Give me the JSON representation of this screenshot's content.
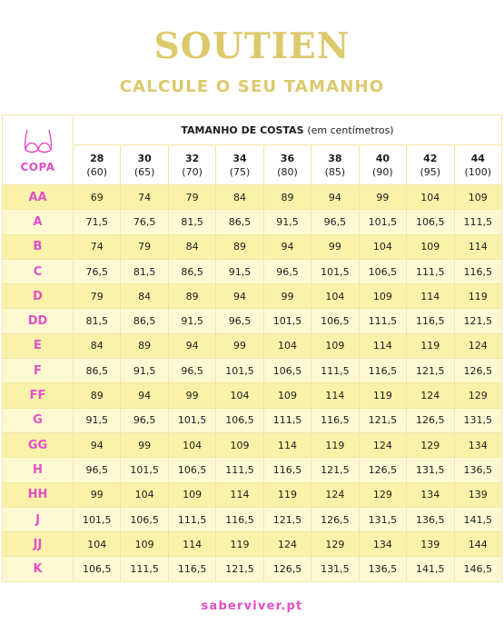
{
  "header": {
    "title": "SOUTIEN",
    "subtitle": "CALCULE O SEU TAMANHO"
  },
  "table": {
    "corner_label": "COPA",
    "heading": "TAMANHO DE COSTAS",
    "heading_unit": "(em centímetros)",
    "columns": [
      {
        "size": "28",
        "cm": "(60)"
      },
      {
        "size": "30",
        "cm": "(65)"
      },
      {
        "size": "32",
        "cm": "(70)"
      },
      {
        "size": "34",
        "cm": "(75)"
      },
      {
        "size": "36",
        "cm": "(80)"
      },
      {
        "size": "38",
        "cm": "(85)"
      },
      {
        "size": "40",
        "cm": "(90)"
      },
      {
        "size": "42",
        "cm": "(95)"
      },
      {
        "size": "44",
        "cm": "(100)"
      }
    ],
    "rows": [
      {
        "cup": "AA",
        "values": [
          "69",
          "74",
          "79",
          "84",
          "89",
          "94",
          "99",
          "104",
          "109"
        ]
      },
      {
        "cup": "A",
        "values": [
          "71,5",
          "76,5",
          "81,5",
          "86,5",
          "91,5",
          "96,5",
          "101,5",
          "106,5",
          "111,5"
        ]
      },
      {
        "cup": "B",
        "values": [
          "74",
          "79",
          "84",
          "89",
          "94",
          "99",
          "104",
          "109",
          "114"
        ]
      },
      {
        "cup": "C",
        "values": [
          "76,5",
          "81,5",
          "86,5",
          "91,5",
          "96,5",
          "101,5",
          "106,5",
          "111,5",
          "116,5"
        ]
      },
      {
        "cup": "D",
        "values": [
          "79",
          "84",
          "89",
          "94",
          "99",
          "104",
          "109",
          "114",
          "119"
        ]
      },
      {
        "cup": "DD",
        "values": [
          "81,5",
          "86,5",
          "91,5",
          "96,5",
          "101,5",
          "106,5",
          "111,5",
          "116,5",
          "121,5"
        ]
      },
      {
        "cup": "E",
        "values": [
          "84",
          "89",
          "94",
          "99",
          "104",
          "109",
          "114",
          "119",
          "124"
        ]
      },
      {
        "cup": "F",
        "values": [
          "86,5",
          "91,5",
          "96,5",
          "101,5",
          "106,5",
          "111,5",
          "116,5",
          "121,5",
          "126,5"
        ]
      },
      {
        "cup": "FF",
        "values": [
          "89",
          "94",
          "99",
          "104",
          "109",
          "114",
          "119",
          "124",
          "129"
        ]
      },
      {
        "cup": "G",
        "values": [
          "91,5",
          "96,5",
          "101,5",
          "106,5",
          "111,5",
          "116,5",
          "121,5",
          "126,5",
          "131,5"
        ]
      },
      {
        "cup": "GG",
        "values": [
          "94",
          "99",
          "104",
          "109",
          "114",
          "119",
          "124",
          "129",
          "134"
        ]
      },
      {
        "cup": "H",
        "values": [
          "96,5",
          "101,5",
          "106,5",
          "111,5",
          "116,5",
          "121,5",
          "126,5",
          "131,5",
          "136,5"
        ]
      },
      {
        "cup": "HH",
        "values": [
          "99",
          "104",
          "109",
          "114",
          "119",
          "124",
          "129",
          "134",
          "139"
        ]
      },
      {
        "cup": "J",
        "values": [
          "101,5",
          "106,5",
          "111,5",
          "116,5",
          "121,5",
          "126,5",
          "131,5",
          "136,5",
          "141,5"
        ]
      },
      {
        "cup": "JJ",
        "values": [
          "104",
          "109",
          "114",
          "119",
          "124",
          "129",
          "134",
          "139",
          "144"
        ]
      },
      {
        "cup": "K",
        "values": [
          "106,5",
          "111,5",
          "116,5",
          "121,5",
          "126,5",
          "131,5",
          "136,5",
          "141,5",
          "146,5"
        ]
      }
    ]
  },
  "footer": {
    "site": "saberviver.pt"
  },
  "colors": {
    "title_gold": "#dcc96b",
    "accent_pink": "#e14fc6",
    "row_yellow_dark": "#fbf2a9",
    "row_yellow_light": "#fff9d3"
  },
  "icons": {
    "corner": "bra-icon"
  }
}
